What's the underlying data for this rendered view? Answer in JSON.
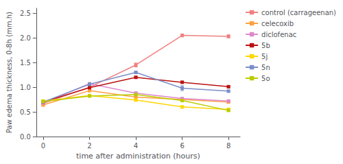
{
  "chart_data": {
    "type": "line",
    "xlabel": "time after administration (hours)",
    "ylabel": "Paw edema thickness, 0-8h (mm.h)",
    "x": [
      0,
      2,
      4,
      6,
      8
    ],
    "series": [
      {
        "name": "control (carrageenan)",
        "color": "#F08080",
        "values": [
          0.67,
          1.0,
          1.45,
          2.05,
          2.03
        ],
        "yerr": [
          0.02,
          0.02,
          0.04,
          0.03,
          0.03
        ]
      },
      {
        "name": "celecoxib",
        "color": "#FFA040",
        "values": [
          0.64,
          0.93,
          0.8,
          0.75,
          0.7
        ],
        "yerr": [
          0.02,
          0.02,
          0.02,
          0.02,
          0.02
        ]
      },
      {
        "name": "diclofenac",
        "color": "#DD88CC",
        "values": [
          0.68,
          1.07,
          0.88,
          0.77,
          0.72
        ],
        "yerr": [
          0.02,
          0.02,
          0.02,
          0.02,
          0.02
        ]
      },
      {
        "name": "5b",
        "color": "#BB1111",
        "values": [
          0.7,
          0.99,
          1.2,
          1.1,
          1.01
        ],
        "yerr": [
          0.02,
          0.02,
          0.02,
          0.02,
          0.02
        ]
      },
      {
        "name": "5j",
        "color": "#FFD700",
        "values": [
          0.72,
          0.83,
          0.74,
          0.6,
          0.55
        ],
        "yerr": [
          0.02,
          0.02,
          0.02,
          0.02,
          0.02
        ]
      },
      {
        "name": "5n",
        "color": "#7B8EC8",
        "values": [
          0.7,
          1.06,
          1.3,
          0.98,
          0.92
        ],
        "yerr": [
          0.02,
          0.02,
          0.02,
          0.05,
          0.02
        ]
      },
      {
        "name": "5o",
        "color": "#BBCC00",
        "values": [
          0.71,
          0.82,
          0.85,
          0.73,
          0.53
        ],
        "yerr": [
          0.02,
          0.02,
          0.02,
          0.02,
          0.02
        ]
      }
    ],
    "xlim": [
      -0.3,
      8.5
    ],
    "xticks": [
      0,
      2,
      4,
      6,
      8
    ],
    "ylim": [
      0.0,
      2.6
    ],
    "yticks": [
      {
        "value": 0.0,
        "label": "0.0"
      },
      0.5,
      {
        "value": 1.0,
        "label": "1.0"
      },
      1.5,
      {
        "value": 2.0,
        "label": "2.0"
      },
      2.5
    ],
    "marker": "square",
    "legend": "right",
    "grid": false
  }
}
